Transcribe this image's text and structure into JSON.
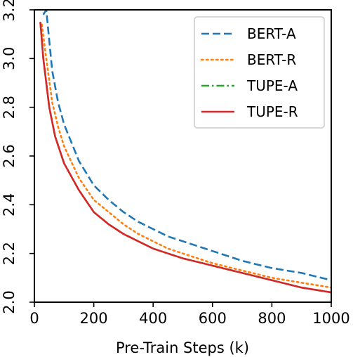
{
  "chart_data": {
    "type": "line",
    "title": "",
    "xlabel": "Pre-Train Steps (k)",
    "ylabel": "",
    "xlim": [
      0,
      1000
    ],
    "ylim": [
      2.0,
      3.2
    ],
    "xticks": [
      "0",
      "200",
      "400",
      "600",
      "800",
      "1000"
    ],
    "yticks": [
      "2.0",
      "2.2",
      "2.4",
      "2.6",
      "2.8",
      "3.0",
      "3.2"
    ],
    "grid": false,
    "legend_position": "top-right",
    "series": [
      {
        "name": "BERT-A",
        "color": "#1f77b4",
        "dash": "dashed",
        "x": [
          30,
          40,
          60,
          80,
          100,
          150,
          200,
          250,
          300,
          350,
          400,
          450,
          500,
          600,
          700,
          800,
          900,
          1000
        ],
        "y": [
          3.18,
          3.2,
          2.95,
          2.82,
          2.73,
          2.58,
          2.48,
          2.42,
          2.37,
          2.33,
          2.3,
          2.27,
          2.25,
          2.21,
          2.17,
          2.14,
          2.12,
          2.09
        ]
      },
      {
        "name": "BERT-R",
        "color": "#ff7f0e",
        "dash": "dotted",
        "x": [
          25,
          40,
          60,
          80,
          100,
          150,
          200,
          250,
          300,
          350,
          400,
          450,
          500,
          600,
          700,
          800,
          900,
          1000
        ],
        "y": [
          3.14,
          3.0,
          2.82,
          2.72,
          2.64,
          2.51,
          2.42,
          2.37,
          2.32,
          2.28,
          2.25,
          2.22,
          2.2,
          2.16,
          2.13,
          2.1,
          2.08,
          2.06
        ]
      },
      {
        "name": "TUPE-A",
        "color": "#2ca02c",
        "dash": "dashdot",
        "x": [
          20,
          30,
          50,
          70,
          100,
          150,
          200,
          250,
          300,
          350,
          400,
          450,
          500,
          600,
          700,
          800,
          900,
          1000
        ],
        "y": [
          3.15,
          3.0,
          2.8,
          2.68,
          2.57,
          2.46,
          2.37,
          2.32,
          2.28,
          2.25,
          2.22,
          2.2,
          2.18,
          2.15,
          2.12,
          2.09,
          2.06,
          2.04
        ]
      },
      {
        "name": "TUPE-R",
        "color": "#d62728",
        "dash": "solid",
        "x": [
          20,
          30,
          50,
          70,
          100,
          150,
          200,
          250,
          300,
          350,
          400,
          450,
          500,
          600,
          700,
          800,
          900,
          1000
        ],
        "y": [
          3.15,
          3.0,
          2.8,
          2.68,
          2.57,
          2.46,
          2.37,
          2.32,
          2.28,
          2.25,
          2.22,
          2.2,
          2.18,
          2.15,
          2.12,
          2.09,
          2.06,
          2.04
        ]
      }
    ]
  }
}
